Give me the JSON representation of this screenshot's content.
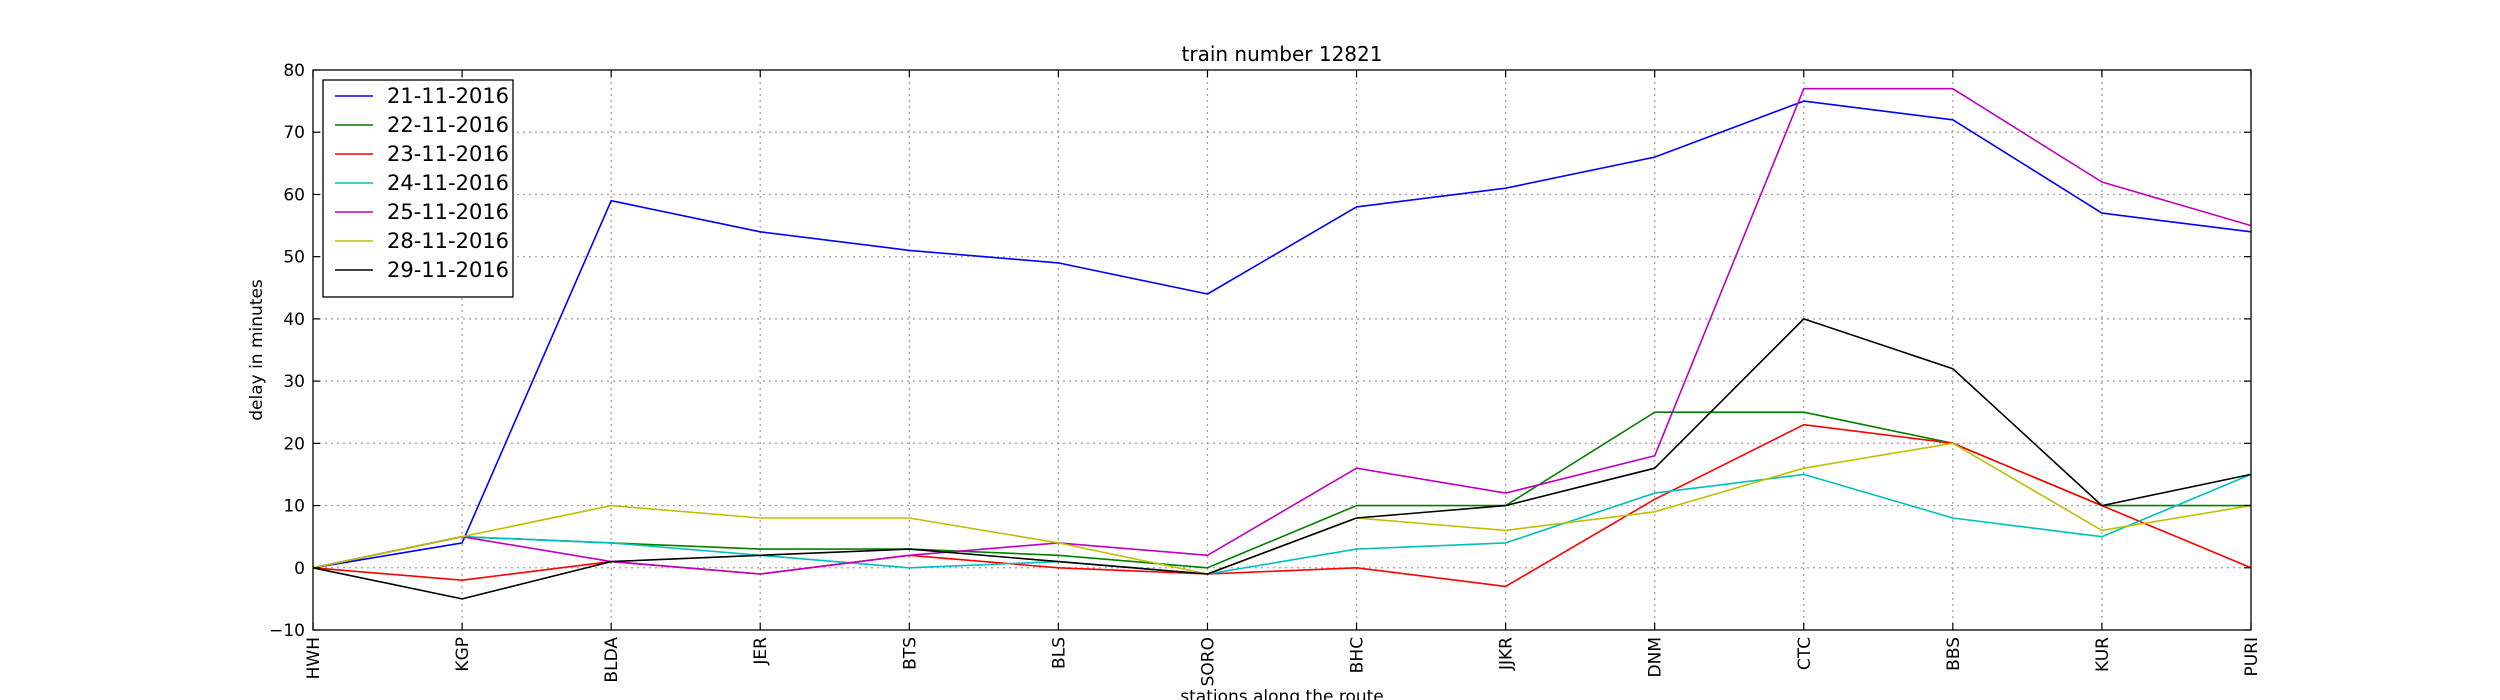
{
  "chart_data": {
    "type": "line",
    "title": "train number 12821",
    "xlabel": "stations along the route",
    "ylabel": "delay in minutes",
    "categories": [
      "HWH",
      "KGP",
      "BLDA",
      "JER",
      "BTS",
      "BLS",
      "SORO",
      "BHC",
      "JJKR",
      "DNM",
      "CTC",
      "BBS",
      "KUR",
      "PURI"
    ],
    "ylim": [
      -10,
      80
    ],
    "yticks": [
      -10,
      0,
      10,
      20,
      30,
      40,
      50,
      60,
      70,
      80
    ],
    "grid": true,
    "legend_position": "upper-left",
    "series": [
      {
        "name": "21-11-2016",
        "color": "#0000ff",
        "values": [
          0,
          4,
          59,
          54,
          51,
          49,
          44,
          58,
          61,
          66,
          75,
          72,
          57,
          54
        ]
      },
      {
        "name": "22-11-2016",
        "color": "#008000",
        "values": [
          0,
          5,
          4,
          3,
          3,
          2,
          0,
          10,
          10,
          25,
          25,
          20,
          10,
          10
        ]
      },
      {
        "name": "23-11-2016",
        "color": "#ff0000",
        "values": [
          0,
          -2,
          1,
          -1,
          2,
          0,
          -1,
          0,
          -3,
          11,
          23,
          20,
          10,
          0
        ]
      },
      {
        "name": "24-11-2016",
        "color": "#00bfbf",
        "values": [
          0,
          5,
          4,
          2,
          0,
          1,
          -1,
          3,
          4,
          12,
          15,
          8,
          5,
          15
        ]
      },
      {
        "name": "25-11-2016",
        "color": "#bf00bf",
        "values": [
          0,
          5,
          1,
          -1,
          2,
          4,
          2,
          16,
          12,
          18,
          77,
          77,
          62,
          55
        ]
      },
      {
        "name": "28-11-2016",
        "color": "#bfbf00",
        "values": [
          0,
          5,
          10,
          8,
          8,
          4,
          -1,
          8,
          6,
          9,
          16,
          20,
          6,
          10
        ]
      },
      {
        "name": "29-11-2016",
        "color": "#000000",
        "values": [
          0,
          -5,
          1,
          2,
          3,
          1,
          -1,
          8,
          10,
          16,
          40,
          32,
          10,
          15
        ]
      }
    ]
  }
}
